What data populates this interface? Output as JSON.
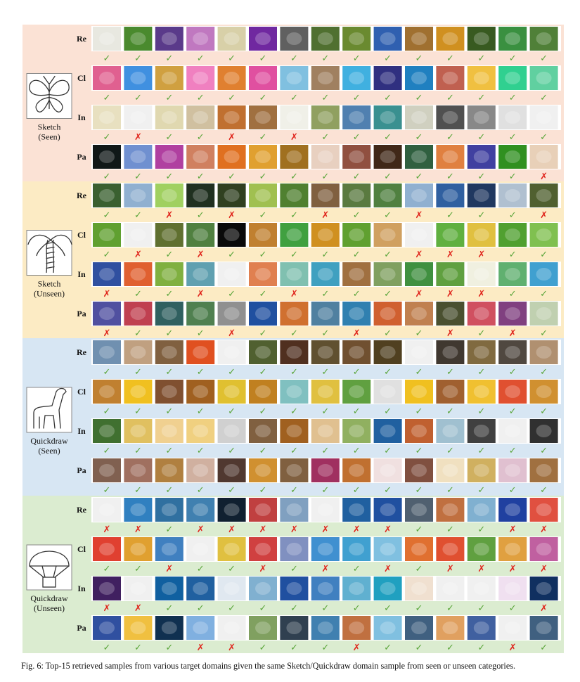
{
  "figure": {
    "caption": "Fig. 6: Top-15 retrieved samples from various target domains given the same Sketch/Quickdraw domain sample from seen or unseen categories.",
    "row_labels": [
      "Re",
      "Cl",
      "In",
      "Pa"
    ],
    "marks": {
      "correct": "✓",
      "wrong": "✗"
    },
    "colors": {
      "correct": "#5aa53a",
      "wrong": "#e0251c"
    },
    "panels": [
      {
        "query_label_line1": "Sketch",
        "query_label_line2": "(Seen)",
        "query_icon": "butterfly-sketch-icon",
        "bg": "#fbe2d5",
        "rows": [
          {
            "domain": "Re",
            "thumb_colors": [
              "#e8e8e0",
              "#4a8a2e",
              "#5a3a8a",
              "#c078c0",
              "#d8d0a8",
              "#7028a0",
              "#606060",
              "#507030",
              "#6a8a30",
              "#3060b0",
              "#a07030",
              "#d09020",
              "#385a20",
              "#3a9040",
              "#508038"
            ],
            "marks": [
              1,
              1,
              1,
              1,
              1,
              1,
              1,
              1,
              1,
              1,
              1,
              1,
              1,
              1,
              1
            ]
          },
          {
            "domain": "Cl",
            "thumb_colors": [
              "#e06090",
              "#4090e0",
              "#d0a040",
              "#f080c0",
              "#e08030",
              "#e050a0",
              "#80c0e0",
              "#a08060",
              "#40b0e0",
              "#303080",
              "#2080c0",
              "#c06050",
              "#f0c040",
              "#30d090",
              "#60d0a0"
            ],
            "marks": [
              1,
              1,
              1,
              1,
              1,
              1,
              1,
              1,
              1,
              1,
              1,
              1,
              1,
              1,
              1
            ]
          },
          {
            "domain": "In",
            "thumb_colors": [
              "#e8e0c0",
              "#f0f0f0",
              "#e0d8b0",
              "#d0c0a0",
              "#c07030",
              "#a07040",
              "#f0f0e8",
              "#90a060",
              "#5080b0",
              "#3a9090",
              "#d0d0c0",
              "#505050",
              "#888888",
              "#e0e0e0",
              "#f0f0f0"
            ],
            "marks": [
              1,
              0,
              1,
              1,
              0,
              1,
              0,
              1,
              1,
              1,
              1,
              1,
              1,
              1,
              1
            ]
          },
          {
            "domain": "Pa",
            "thumb_colors": [
              "#101818",
              "#7090d0",
              "#b040a0",
              "#d08060",
              "#e07020",
              "#e0a030",
              "#a07020",
              "#e8d0c0",
              "#905040",
              "#402818",
              "#306040",
              "#e08040",
              "#4040a0",
              "#309020",
              "#e8d0b8"
            ],
            "marks": [
              1,
              1,
              1,
              1,
              1,
              1,
              1,
              1,
              1,
              1,
              1,
              1,
              1,
              1,
              0
            ]
          }
        ]
      },
      {
        "query_label_line1": "Sketch",
        "query_label_line2": "(Unseen)",
        "query_icon": "palm-tree-sketch-icon",
        "bg": "#fcebc4",
        "rows": [
          {
            "domain": "Re",
            "thumb_colors": [
              "#3a6030",
              "#90b0d0",
              "#a0d060",
              "#203020",
              "#304020",
              "#a0c050",
              "#508030",
              "#806040",
              "#5a7a40",
              "#508040",
              "#90b0d0",
              "#3060a0",
              "#203860",
              "#b0c0d0",
              "#506030"
            ],
            "marks": [
              1,
              1,
              0,
              1,
              0,
              1,
              1,
              0,
              1,
              1,
              0,
              1,
              1,
              1,
              0
            ]
          },
          {
            "domain": "Cl",
            "thumb_colors": [
              "#60a030",
              "#f0f0f0",
              "#607030",
              "#508040",
              "#0a0a0a",
              "#c08030",
              "#40a040",
              "#d09020",
              "#60a030",
              "#d0a060",
              "#f0f0f0",
              "#60b040",
              "#e0c040",
              "#50a030",
              "#80c050"
            ],
            "marks": [
              1,
              0,
              1,
              0,
              1,
              1,
              1,
              1,
              1,
              1,
              0,
              0,
              0,
              1,
              1
            ]
          },
          {
            "domain": "In",
            "thumb_colors": [
              "#3050a0",
              "#e06030",
              "#80b040",
              "#60a0b0",
              "#f0f0f0",
              "#e08050",
              "#80c0b0",
              "#40a0c0",
              "#a07040",
              "#80a060",
              "#409040",
              "#60a040",
              "#f0f0e0",
              "#60b070",
              "#40a0d0"
            ],
            "marks": [
              0,
              1,
              1,
              0,
              1,
              1,
              0,
              1,
              1,
              1,
              0,
              0,
              0,
              1,
              1
            ]
          },
          {
            "domain": "Pa",
            "thumb_colors": [
              "#5050a0",
              "#c04050",
              "#306060",
              "#508050",
              "#909090",
              "#2050a0",
              "#d07030",
              "#5080a0",
              "#3080b0",
              "#d06030",
              "#c08050",
              "#4a5030",
              "#d05060",
              "#804080",
              "#c0d0b0"
            ],
            "marks": [
              0,
              1,
              1,
              1,
              0,
              1,
              1,
              1,
              0,
              1,
              1,
              0,
              1,
              0,
              1
            ]
          }
        ]
      },
      {
        "query_label_line1": "Quickdraw",
        "query_label_line2": "(Seen)",
        "query_icon": "giraffe-quickdraw-icon",
        "bg": "#d7e6f3",
        "rows": [
          {
            "domain": "Re",
            "thumb_colors": [
              "#7090b0",
              "#c0a080",
              "#806040",
              "#e05020",
              "#f0f0f0",
              "#506030",
              "#503020",
              "#605030",
              "#705030",
              "#504020",
              "#f0f0f0",
              "#403830",
              "#806a40",
              "#504840",
              "#b09070"
            ],
            "marks": [
              1,
              1,
              1,
              1,
              1,
              1,
              1,
              1,
              1,
              1,
              1,
              1,
              1,
              1,
              1
            ]
          },
          {
            "domain": "Cl",
            "thumb_colors": [
              "#c08030",
              "#f0c020",
              "#805030",
              "#a06020",
              "#e0c030",
              "#c08020",
              "#80c0c0",
              "#e0c040",
              "#60a040",
              "#e0e0e0",
              "#f0c020",
              "#a06030",
              "#f0c030",
              "#e05030",
              "#d09030"
            ],
            "marks": [
              1,
              1,
              1,
              1,
              1,
              1,
              1,
              1,
              1,
              1,
              1,
              1,
              1,
              1,
              1
            ]
          },
          {
            "domain": "In",
            "thumb_colors": [
              "#407030",
              "#e0c060",
              "#f0d090",
              "#f0d080",
              "#d0d0d0",
              "#806040",
              "#a06020",
              "#e0c090",
              "#90b060",
              "#2060a0",
              "#c06030",
              "#a0c0d0",
              "#404040",
              "#f0f0f0",
              "#303030"
            ],
            "marks": [
              1,
              1,
              1,
              1,
              1,
              1,
              1,
              1,
              1,
              1,
              1,
              1,
              1,
              1,
              1
            ]
          },
          {
            "domain": "Pa",
            "thumb_colors": [
              "#806050",
              "#a07060",
              "#b08040",
              "#d0b0a0",
              "#503830",
              "#d09030",
              "#806040",
              "#a03060",
              "#c07030",
              "#f0e0e0",
              "#805040",
              "#f0e0c0",
              "#d0b060",
              "#e0c0d0",
              "#a07040"
            ],
            "marks": [
              1,
              1,
              1,
              1,
              1,
              1,
              1,
              1,
              1,
              1,
              1,
              1,
              1,
              1,
              1
            ]
          }
        ]
      },
      {
        "query_label_line1": "Quickdraw",
        "query_label_line2": "(Unseen)",
        "query_icon": "parachute-quickdraw-icon",
        "bg": "#dbecd0",
        "rows": [
          {
            "domain": "Re",
            "thumb_colors": [
              "#f0f0f0",
              "#3080c0",
              "#3070a0",
              "#4080b0",
              "#102030",
              "#c04040",
              "#80a0c0",
              "#f0f0f0",
              "#2060a0",
              "#2050a0",
              "#506070",
              "#c07040",
              "#80b0d0",
              "#2040a0",
              "#e05040"
            ],
            "marks": [
              0,
              0,
              1,
              0,
              0,
              0,
              0,
              0,
              0,
              0,
              1,
              1,
              1,
              0,
              0
            ]
          },
          {
            "domain": "Cl",
            "thumb_colors": [
              "#e04030",
              "#e0a030",
              "#4080c0",
              "#f0f0f0",
              "#e0c040",
              "#d04040",
              "#8090c0",
              "#4090d0",
              "#40a0d0",
              "#80c0e0",
              "#e07030",
              "#e05030",
              "#60a040",
              "#e0a040",
              "#c060a0"
            ],
            "marks": [
              1,
              1,
              0,
              1,
              1,
              0,
              1,
              0,
              1,
              0,
              1,
              0,
              0,
              0,
              0
            ]
          },
          {
            "domain": "In",
            "thumb_colors": [
              "#402060",
              "#f0f0f0",
              "#1060a0",
              "#2060a0",
              "#e0e8f0",
              "#80b0d0",
              "#2050a0",
              "#4080c0",
              "#60b0d0",
              "#20a0c0",
              "#f0e0d0",
              "#f0f0f0",
              "#f0f0f0",
              "#f0e0f0",
              "#103060"
            ],
            "marks": [
              0,
              0,
              1,
              1,
              1,
              1,
              1,
              1,
              1,
              1,
              1,
              1,
              1,
              1,
              0
            ]
          },
          {
            "domain": "Pa",
            "thumb_colors": [
              "#3050a0",
              "#f0c040",
              "#103050",
              "#80b0e0",
              "#f0f0f0",
              "#80a060",
              "#304050",
              "#4080b0",
              "#c07040",
              "#80c0e0",
              "#406080",
              "#e0a060",
              "#4060a0",
              "#f0f0f0",
              "#406080"
            ],
            "marks": [
              1,
              1,
              1,
              0,
              0,
              1,
              1,
              1,
              0,
              1,
              1,
              1,
              1,
              0,
              1
            ]
          }
        ]
      }
    ]
  }
}
